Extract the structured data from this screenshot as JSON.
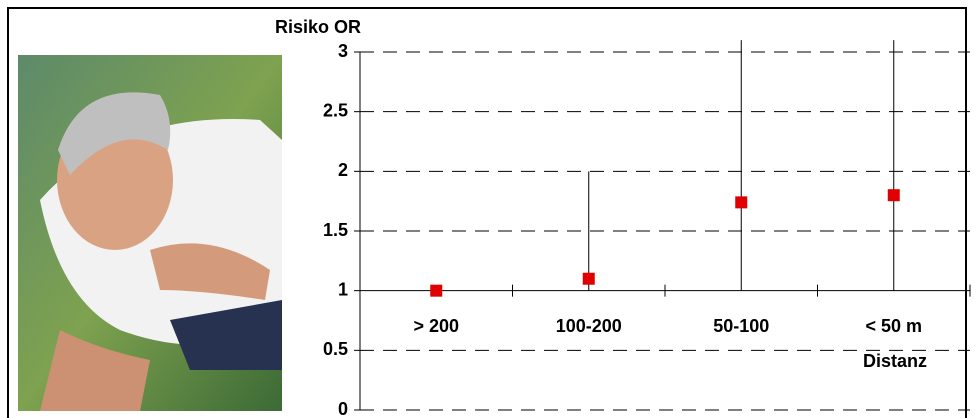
{
  "chart_data": {
    "type": "point",
    "y_label": "Risiko OR",
    "x_label": "Distanz",
    "categories": [
      "> 200",
      "100-200",
      "50-100",
      "< 50 m"
    ],
    "values": [
      1.0,
      1.1,
      1.74,
      1.8
    ],
    "lower": [
      null,
      1.0,
      1.0,
      1.0
    ],
    "upper": [
      null,
      2.0,
      3.1,
      3.1
    ],
    "color": "#e00000",
    "ylim": [
      0,
      3
    ],
    "yticks": [
      0,
      0.5,
      1,
      1.5,
      2,
      2.5,
      3
    ],
    "baseline": 1,
    "grid": true
  }
}
